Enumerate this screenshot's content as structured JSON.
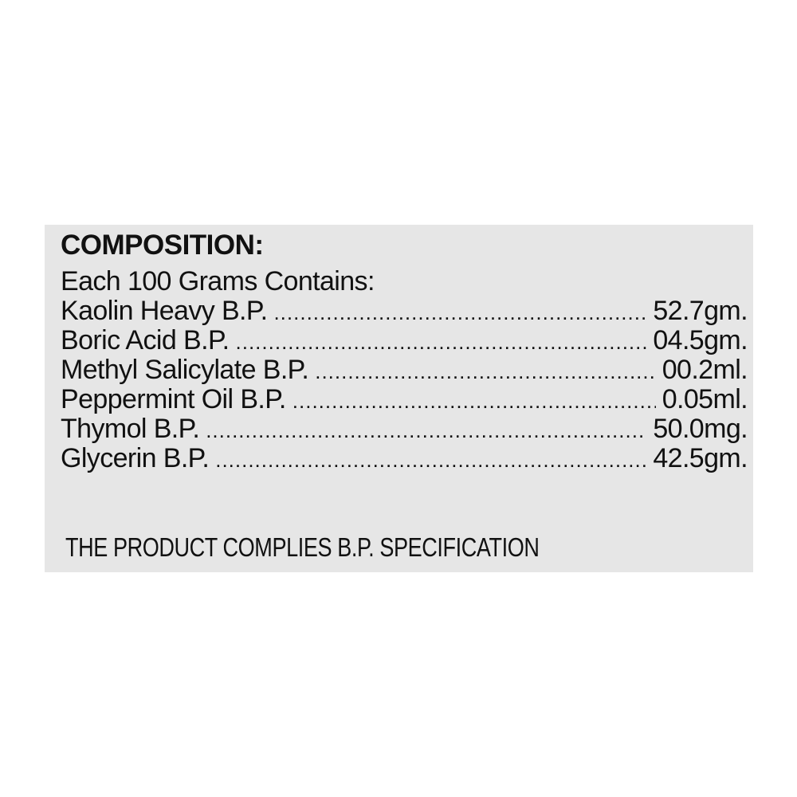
{
  "label": {
    "title": "COMPOSITION:",
    "intro": "Each 100 Grams Contains:",
    "ingredients": [
      {
        "name": "Kaolin Heavy B.P.",
        "amount": "52.7gm."
      },
      {
        "name": "Boric Acid B.P.",
        "amount": "04.5gm."
      },
      {
        "name": "Methyl Salicylate B.P.",
        "amount": "00.2ml."
      },
      {
        "name": "Peppermint Oil B.P.",
        "amount": "0.05ml."
      },
      {
        "name": "Thymol B.P.",
        "amount": "50.0mg."
      },
      {
        "name": "Glycerin B.P.",
        "amount": "42.5gm."
      }
    ],
    "footer": "THE PRODUCT COMPLIES B.P. SPECIFICATION"
  }
}
